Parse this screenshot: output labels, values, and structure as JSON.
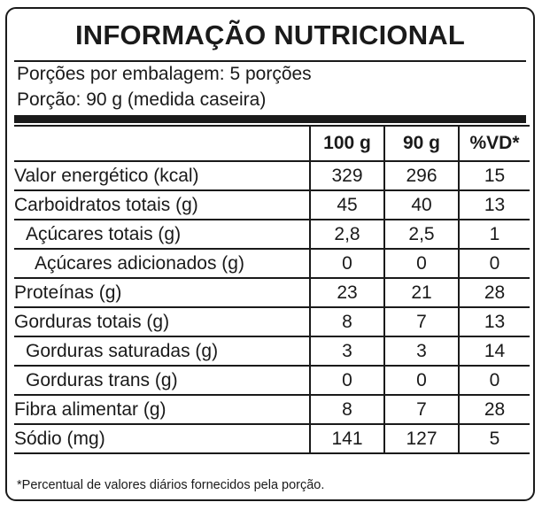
{
  "title": "INFORMAÇÃO NUTRICIONAL",
  "servings_per_package": "Porções por embalagem: 5 porções",
  "serving_size": "Porção: 90 g (medida caseira)",
  "columns": [
    "100 g",
    "90 g",
    "%VD*"
  ],
  "rows": [
    {
      "name": "Valor energético (kcal)",
      "indent": 0,
      "values": [
        "329",
        "296",
        "15"
      ]
    },
    {
      "name": "Carboidratos totais (g)",
      "indent": 0,
      "values": [
        "45",
        "40",
        "13"
      ]
    },
    {
      "name": "Açúcares totais (g)",
      "indent": 1,
      "values": [
        "2,8",
        "2,5",
        "1"
      ]
    },
    {
      "name": "Açúcares adicionados (g)",
      "indent": 2,
      "values": [
        "0",
        "0",
        "0"
      ]
    },
    {
      "name": "Proteínas (g)",
      "indent": 0,
      "values": [
        "23",
        "21",
        "28"
      ]
    },
    {
      "name": "Gorduras totais (g)",
      "indent": 0,
      "values": [
        "8",
        "7",
        "13"
      ]
    },
    {
      "name": "Gorduras saturadas (g)",
      "indent": 1,
      "values": [
        "3",
        "3",
        "14"
      ]
    },
    {
      "name": "Gorduras trans (g)",
      "indent": 1,
      "values": [
        "0",
        "0",
        "0"
      ]
    },
    {
      "name": "Fibra alimentar (g)",
      "indent": 0,
      "values": [
        "8",
        "7",
        "28"
      ]
    },
    {
      "name": "Sódio (mg)",
      "indent": 0,
      "values": [
        "141",
        "127",
        "5"
      ]
    }
  ],
  "footnote": "*Percentual de valores diários fornecidos pela porção."
}
